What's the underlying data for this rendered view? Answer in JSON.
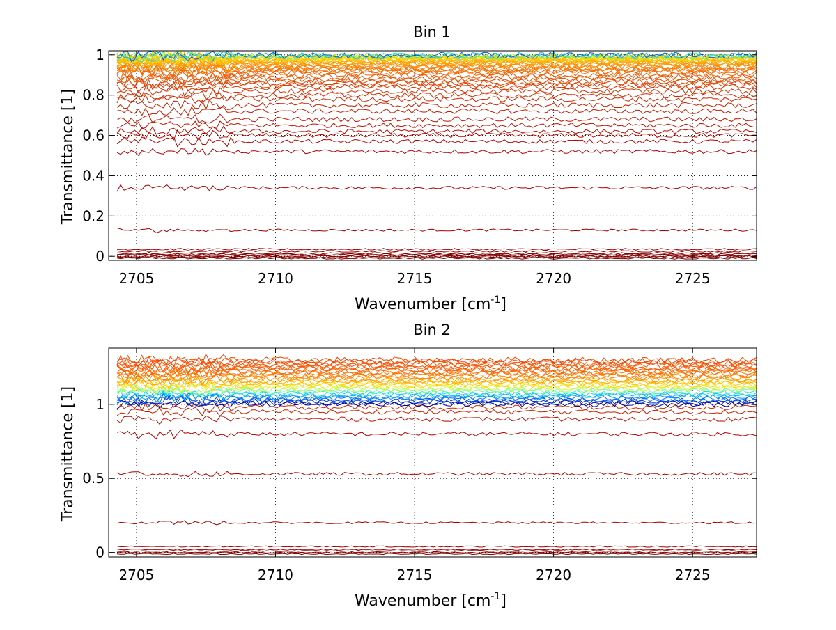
{
  "figure": {
    "background": "#ffffff"
  },
  "chart_data": [
    {
      "type": "line",
      "title": "Bin 1",
      "xlabel": "Wavenumber [cm",
      "xlabel_sup": "-1",
      "xlabel_end": "]",
      "ylabel": "Transmittance [1]",
      "xlim": [
        2704,
        2727.3
      ],
      "ylim": [
        -0.02,
        1.02
      ],
      "xticks": [
        2705,
        2710,
        2715,
        2720,
        2725
      ],
      "xtick_labels": [
        "2705",
        "2710",
        "2715",
        "2720",
        "2725"
      ],
      "yticks": [
        0,
        0.2,
        0.4,
        0.6,
        0.8,
        1
      ],
      "ytick_labels": [
        "0",
        "0.2",
        "0.4",
        "0.6",
        "0.8",
        "1"
      ],
      "x_range": [
        2704.3,
        2727.3
      ],
      "grid": true,
      "grid_style": "dotted",
      "legend": "none",
      "colormap": "jet",
      "series_baselines": [
        -0.01,
        -0.005,
        0.0,
        0.005,
        0.01,
        0.015,
        0.025,
        0.035,
        0.13,
        0.34,
        0.52,
        0.57,
        0.6,
        0.62,
        0.65,
        0.68,
        0.72,
        0.75,
        0.78,
        0.8,
        0.82,
        0.84,
        0.85,
        0.86,
        0.87,
        0.88,
        0.89,
        0.9,
        0.91,
        0.92,
        0.925,
        0.93,
        0.935,
        0.94,
        0.945,
        0.95,
        0.955,
        0.96,
        0.963,
        0.966,
        0.969,
        0.972,
        0.975,
        0.978,
        0.98,
        0.982,
        0.984,
        0.986,
        0.988,
        0.99,
        0.992,
        0.994,
        0.996,
        0.998
      ],
      "series_colors": [
        "#7f0000",
        "#800000",
        "#820000",
        "#850000",
        "#880000",
        "#8b0000",
        "#900000",
        "#950000",
        "#a00000",
        "#aa0000",
        "#b00000",
        "#b50500",
        "#b80800",
        "#bb0a00",
        "#be1000",
        "#c21500",
        "#c51a00",
        "#c82000",
        "#cc2500",
        "#d02b00",
        "#d43000",
        "#d83600",
        "#dc3c00",
        "#e04200",
        "#e44800",
        "#e84e00",
        "#ec5400",
        "#ef5a00",
        "#f26000",
        "#f46600",
        "#f66c00",
        "#f87200",
        "#fa7800",
        "#fb7e00",
        "#fc8400",
        "#fd8a00",
        "#fe9000",
        "#ff9600",
        "#ff9c00",
        "#ffa200",
        "#ffa800",
        "#ffae00",
        "#ffb400",
        "#ffba00",
        "#ffc000",
        "#ffc800",
        "#ffd000",
        "#f5d800",
        "#e0e000",
        "#bde81a",
        "#7fef5a",
        "#40e0b0",
        "#1ab0e0",
        "#0a60c8"
      ]
    },
    {
      "type": "line",
      "title": "Bin 2",
      "xlabel": "Wavenumber [cm",
      "xlabel_sup": "-1",
      "xlabel_end": "]",
      "ylabel": "Transmittance [1]",
      "xlim": [
        2704,
        2727.3
      ],
      "ylim": [
        -0.03,
        1.38
      ],
      "xticks": [
        2705,
        2710,
        2715,
        2720,
        2725
      ],
      "xtick_labels": [
        "2705",
        "2710",
        "2715",
        "2720",
        "2725"
      ],
      "yticks": [
        0,
        0.5,
        1
      ],
      "ytick_labels": [
        "0",
        "0.5",
        "1"
      ],
      "x_range": [
        2704.3,
        2727.3
      ],
      "grid": true,
      "grid_style": "dotted",
      "legend": "none",
      "colormap": "jet",
      "series_baselines": [
        -0.01,
        0.0,
        0.01,
        0.02,
        0.04,
        0.2,
        0.53,
        0.8,
        0.9,
        0.95,
        0.98,
        1.0,
        1.01,
        1.02,
        1.03,
        1.04,
        1.05,
        1.06,
        1.07,
        1.08,
        1.09,
        1.1,
        1.11,
        1.12,
        1.13,
        1.14,
        1.15,
        1.16,
        1.17,
        1.18,
        1.19,
        1.2,
        1.21,
        1.22,
        1.23,
        1.24,
        1.25,
        1.26,
        1.27,
        1.28,
        1.29,
        1.3
      ],
      "series_colors": [
        "#7f0000",
        "#850000",
        "#8a0000",
        "#900000",
        "#950000",
        "#a00000",
        "#aa0000",
        "#b50500",
        "#c01000",
        "#c81c00",
        "#d02800",
        "#00008f",
        "#0010b0",
        "#0030d0",
        "#0050e8",
        "#0070f8",
        "#0090ff",
        "#00b0ff",
        "#10d0f0",
        "#40e8c8",
        "#70f8a0",
        "#a0ff70",
        "#d0f840",
        "#f0e820",
        "#ffd800",
        "#ffc800",
        "#ffb800",
        "#ffa800",
        "#ff9800",
        "#ff8c00",
        "#ff8000",
        "#ff7800",
        "#ff7000",
        "#ff6800",
        "#ff6200",
        "#ff5c00",
        "#ff5800",
        "#ff5400",
        "#ff5000",
        "#f84c00",
        "#f44800",
        "#f04400"
      ]
    }
  ]
}
